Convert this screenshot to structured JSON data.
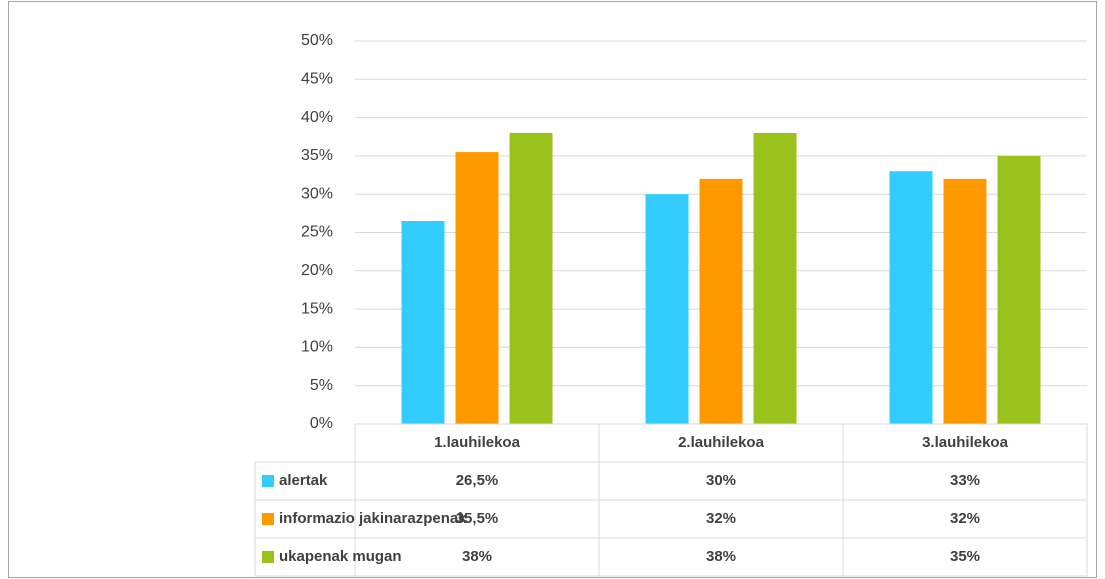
{
  "chart_data": {
    "type": "bar",
    "categories": [
      "1.lauhilekoa",
      "2.lauhilekoa",
      "3.lauhilekoa"
    ],
    "series": [
      {
        "name": "alertak",
        "color": "#33ccff",
        "values": [
          26.5,
          30,
          33
        ],
        "value_labels": [
          "26,5%",
          "30%",
          "33%"
        ]
      },
      {
        "name": "informazio jakinarazpenak",
        "color": "#ff9900",
        "values": [
          35.5,
          32,
          32
        ],
        "value_labels": [
          "35,5%",
          "32%",
          "32%"
        ]
      },
      {
        "name": "ukapenak mugan",
        "color": "#99c21c",
        "values": [
          38,
          38,
          35
        ],
        "value_labels": [
          "38%",
          "38%",
          "35%"
        ]
      }
    ],
    "ylim": [
      0,
      50
    ],
    "yticks": [
      {
        "value": 0,
        "label": "0%"
      },
      {
        "value": 5,
        "label": "5%"
      },
      {
        "value": 10,
        "label": "10%"
      },
      {
        "value": 15,
        "label": "15%"
      },
      {
        "value": 20,
        "label": "20%"
      },
      {
        "value": 25,
        "label": "25%"
      },
      {
        "value": 30,
        "label": "30%"
      },
      {
        "value": 35,
        "label": "35%"
      },
      {
        "value": 40,
        "label": "40%"
      },
      {
        "value": 45,
        "label": "45%"
      },
      {
        "value": 50,
        "label": "50%"
      }
    ],
    "grid": true,
    "legend": "table"
  }
}
